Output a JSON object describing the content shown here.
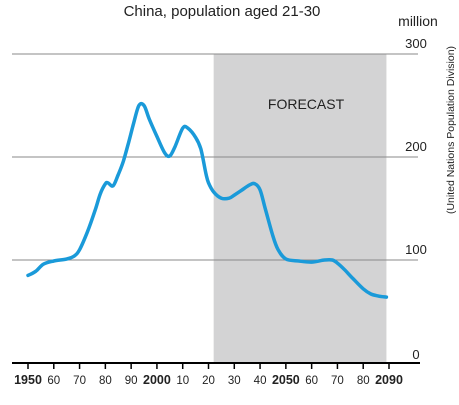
{
  "chart_data": {
    "type": "line",
    "title": "China, population aged 21-30",
    "unit_label": "million",
    "source_note": "(United Nations Population Division)",
    "forecast_label": "FORECAST",
    "forecast_range": [
      2022,
      2089
    ],
    "xlim": [
      1945,
      2093
    ],
    "ylim": [
      0,
      300
    ],
    "yticks": [
      {
        "value": 0,
        "label": "0"
      },
      {
        "value": 100,
        "label": "100"
      },
      {
        "value": 200,
        "label": "200"
      },
      {
        "value": 300,
        "label": "300"
      }
    ],
    "xticks": [
      {
        "value": 1950,
        "label": "1950",
        "bold": true
      },
      {
        "value": 1960,
        "label": "60",
        "bold": false
      },
      {
        "value": 1970,
        "label": "70",
        "bold": false
      },
      {
        "value": 1980,
        "label": "80",
        "bold": false
      },
      {
        "value": 1990,
        "label": "90",
        "bold": false
      },
      {
        "value": 2000,
        "label": "2000",
        "bold": true
      },
      {
        "value": 2010,
        "label": "10",
        "bold": false
      },
      {
        "value": 2020,
        "label": "20",
        "bold": false
      },
      {
        "value": 2030,
        "label": "30",
        "bold": false
      },
      {
        "value": 2040,
        "label": "40",
        "bold": false
      },
      {
        "value": 2050,
        "label": "2050",
        "bold": true
      },
      {
        "value": 2060,
        "label": "60",
        "bold": false
      },
      {
        "value": 2070,
        "label": "70",
        "bold": false
      },
      {
        "value": 2080,
        "label": "80",
        "bold": false
      },
      {
        "value": 2090,
        "label": "2090",
        "bold": true
      }
    ],
    "grid": true,
    "series": [
      {
        "color": "#1a9ad9",
        "points": [
          [
            1950,
            85
          ],
          [
            1953,
            89
          ],
          [
            1956,
            96
          ],
          [
            1960,
            99
          ],
          [
            1965,
            101
          ],
          [
            1968,
            104
          ],
          [
            1970,
            110
          ],
          [
            1973,
            127
          ],
          [
            1976,
            148
          ],
          [
            1978,
            164
          ],
          [
            1980,
            174
          ],
          [
            1981,
            175
          ],
          [
            1983,
            172
          ],
          [
            1985,
            183
          ],
          [
            1987,
            196
          ],
          [
            1989,
            214
          ],
          [
            1991,
            233
          ],
          [
            1993,
            250
          ],
          [
            1995,
            250
          ],
          [
            1997,
            237
          ],
          [
            2000,
            220
          ],
          [
            2003,
            204
          ],
          [
            2005,
            201
          ],
          [
            2007,
            210
          ],
          [
            2010,
            228
          ],
          [
            2012,
            228
          ],
          [
            2015,
            219
          ],
          [
            2017,
            208
          ],
          [
            2019,
            184
          ],
          [
            2020,
            175
          ],
          [
            2022,
            166
          ],
          [
            2025,
            160
          ],
          [
            2028,
            160
          ],
          [
            2030,
            163
          ],
          [
            2033,
            168
          ],
          [
            2036,
            173
          ],
          [
            2038,
            174
          ],
          [
            2040,
            168
          ],
          [
            2042,
            150
          ],
          [
            2045,
            123
          ],
          [
            2047,
            110
          ],
          [
            2050,
            101
          ],
          [
            2055,
            99
          ],
          [
            2060,
            98
          ],
          [
            2065,
            100
          ],
          [
            2068,
            100
          ],
          [
            2070,
            97
          ],
          [
            2073,
            90
          ],
          [
            2076,
            82
          ],
          [
            2080,
            72
          ],
          [
            2083,
            67
          ],
          [
            2086,
            65
          ],
          [
            2089,
            64
          ]
        ]
      }
    ]
  }
}
